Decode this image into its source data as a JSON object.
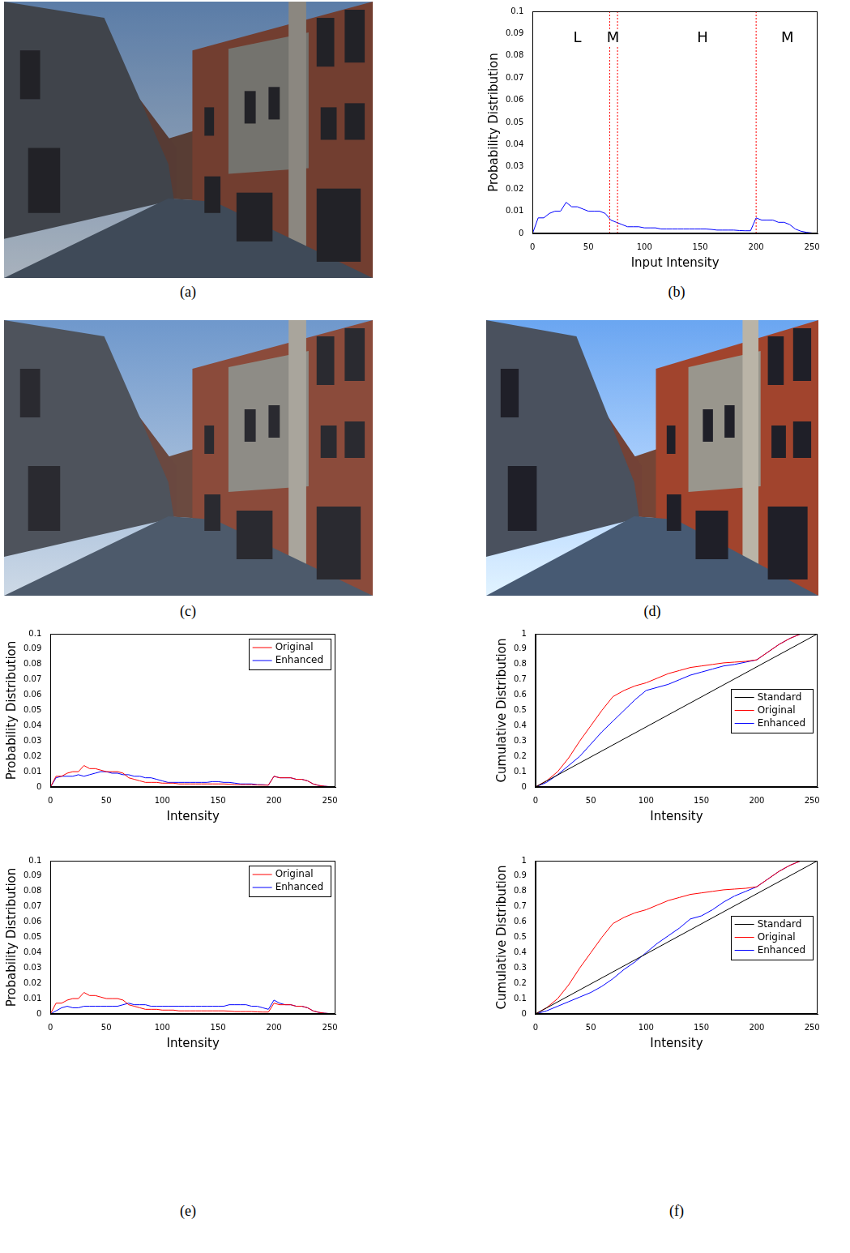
{
  "captions": [
    "(a)",
    "(b)",
    "(c)",
    "(d)",
    "(e)",
    "(f)"
  ],
  "chart_data": [
    {
      "type": "line",
      "xlabel": "Input Intensity",
      "ylabel": "Probability Distribution",
      "x": [
        0,
        5,
        10,
        15,
        20,
        25,
        30,
        35,
        40,
        45,
        50,
        55,
        60,
        65,
        70,
        75,
        80,
        85,
        90,
        95,
        100,
        105,
        110,
        115,
        120,
        125,
        130,
        135,
        140,
        145,
        150,
        155,
        160,
        165,
        170,
        175,
        180,
        185,
        190,
        195,
        200,
        205,
        210,
        215,
        220,
        225,
        230,
        235,
        240,
        245,
        250,
        255
      ],
      "values": [
        0,
        0.007,
        0.007,
        0.009,
        0.01,
        0.01,
        0.014,
        0.012,
        0.012,
        0.011,
        0.01,
        0.01,
        0.01,
        0.009,
        0.006,
        0.005,
        0.004,
        0.003,
        0.003,
        0.003,
        0.0025,
        0.0025,
        0.0025,
        0.002,
        0.002,
        0.002,
        0.002,
        0.002,
        0.002,
        0.002,
        0.002,
        0.002,
        0.0018,
        0.0015,
        0.0015,
        0.0015,
        0.0015,
        0.0013,
        0.0012,
        0.0012,
        0.007,
        0.006,
        0.006,
        0.006,
        0.005,
        0.005,
        0.004,
        0.002,
        0.001,
        0.0005,
        0.0002,
        0
      ],
      "color": "#0000ff",
      "xlim": [
        0,
        255
      ],
      "xticks": [
        0,
        50,
        100,
        150,
        200,
        250
      ],
      "ylim": [
        0,
        0.1
      ],
      "yticks": [
        0,
        0.01,
        0.02,
        0.03,
        0.04,
        0.05,
        0.06,
        0.07,
        0.08,
        0.09,
        0.1
      ],
      "grid": false,
      "vlines": [
        69,
        76,
        200
      ],
      "annotations": [
        {
          "text": "L",
          "x": 40,
          "y": 0.088
        },
        {
          "text": "M",
          "x": 72,
          "y": 0.088
        },
        {
          "text": "H",
          "x": 152,
          "y": 0.088
        },
        {
          "text": "M",
          "x": 228,
          "y": 0.088
        }
      ]
    },
    {
      "type": "line",
      "xlabel": "Intensity",
      "ylabel": "Probability Distribution",
      "x": [
        0,
        5,
        10,
        15,
        20,
        25,
        30,
        35,
        40,
        45,
        50,
        55,
        60,
        65,
        70,
        75,
        80,
        85,
        90,
        95,
        100,
        105,
        110,
        115,
        120,
        125,
        130,
        135,
        140,
        145,
        150,
        155,
        160,
        165,
        170,
        175,
        180,
        185,
        190,
        195,
        200,
        205,
        210,
        215,
        220,
        225,
        230,
        235,
        240,
        245,
        250,
        255
      ],
      "series": [
        {
          "name": "Original",
          "color": "#ff0000",
          "values": [
            0,
            0.007,
            0.007,
            0.009,
            0.01,
            0.01,
            0.014,
            0.012,
            0.012,
            0.011,
            0.01,
            0.01,
            0.01,
            0.009,
            0.006,
            0.005,
            0.004,
            0.003,
            0.003,
            0.003,
            0.0025,
            0.0025,
            0.0025,
            0.002,
            0.002,
            0.002,
            0.002,
            0.002,
            0.002,
            0.002,
            0.002,
            0.002,
            0.0018,
            0.0015,
            0.0015,
            0.0015,
            0.0015,
            0.0013,
            0.0012,
            0.0012,
            0.007,
            0.006,
            0.006,
            0.006,
            0.005,
            0.005,
            0.004,
            0.002,
            0.001,
            0.0005,
            0.0002,
            0
          ]
        },
        {
          "name": "Enhanced",
          "color": "#0000ff",
          "values": [
            0,
            0.006,
            0.007,
            0.007,
            0.007,
            0.008,
            0.007,
            0.008,
            0.009,
            0.01,
            0.01,
            0.009,
            0.009,
            0.008,
            0.008,
            0.007,
            0.007,
            0.006,
            0.006,
            0.005,
            0.004,
            0.003,
            0.003,
            0.003,
            0.003,
            0.003,
            0.003,
            0.003,
            0.003,
            0.0035,
            0.0035,
            0.003,
            0.003,
            0.0025,
            0.002,
            0.002,
            0.002,
            0.0015,
            0.0015,
            0.0012,
            0.007,
            0.006,
            0.006,
            0.006,
            0.005,
            0.005,
            0.004,
            0.002,
            0.001,
            0.0005,
            0.0002,
            0
          ]
        }
      ],
      "xlim": [
        0,
        255
      ],
      "xticks": [
        0,
        50,
        100,
        150,
        200,
        250
      ],
      "ylim": [
        0,
        0.1
      ],
      "yticks": [
        0,
        0.01,
        0.02,
        0.03,
        0.04,
        0.05,
        0.06,
        0.07,
        0.08,
        0.09,
        0.1
      ],
      "grid": false,
      "legend": "northeast"
    },
    {
      "type": "line",
      "xlabel": "Intensity",
      "ylabel": "Probability Distribution",
      "x": [
        0,
        5,
        10,
        15,
        20,
        25,
        30,
        35,
        40,
        45,
        50,
        55,
        60,
        65,
        70,
        75,
        80,
        85,
        90,
        95,
        100,
        105,
        110,
        115,
        120,
        125,
        130,
        135,
        140,
        145,
        150,
        155,
        160,
        165,
        170,
        175,
        180,
        185,
        190,
        195,
        200,
        205,
        210,
        215,
        220,
        225,
        230,
        235,
        240,
        245,
        250,
        255
      ],
      "series": [
        {
          "name": "Original",
          "color": "#ff0000",
          "values": [
            0,
            0.007,
            0.007,
            0.009,
            0.01,
            0.01,
            0.014,
            0.012,
            0.012,
            0.011,
            0.01,
            0.01,
            0.01,
            0.009,
            0.006,
            0.005,
            0.004,
            0.003,
            0.003,
            0.003,
            0.0025,
            0.0025,
            0.0025,
            0.002,
            0.002,
            0.002,
            0.002,
            0.002,
            0.002,
            0.002,
            0.002,
            0.002,
            0.0018,
            0.0015,
            0.0015,
            0.0015,
            0.0015,
            0.0013,
            0.0012,
            0.0012,
            0.007,
            0.006,
            0.006,
            0.006,
            0.005,
            0.005,
            0.004,
            0.002,
            0.001,
            0.0005,
            0.0002,
            0
          ]
        },
        {
          "name": "Enhanced",
          "color": "#0000ff",
          "values": [
            0,
            0.002,
            0.004,
            0.005,
            0.004,
            0.004,
            0.005,
            0.005,
            0.005,
            0.005,
            0.005,
            0.005,
            0.005,
            0.006,
            0.007,
            0.006,
            0.006,
            0.006,
            0.005,
            0.005,
            0.005,
            0.005,
            0.005,
            0.005,
            0.005,
            0.005,
            0.005,
            0.005,
            0.005,
            0.005,
            0.005,
            0.005,
            0.006,
            0.006,
            0.006,
            0.006,
            0.005,
            0.005,
            0.004,
            0.003,
            0.009,
            0.007,
            0.006,
            0.006,
            0.005,
            0.005,
            0.004,
            0.002,
            0.001,
            0.0005,
            0.0002,
            0
          ]
        }
      ],
      "xlim": [
        0,
        255
      ],
      "xticks": [
        0,
        50,
        100,
        150,
        200,
        250
      ],
      "ylim": [
        0,
        0.1
      ],
      "yticks": [
        0,
        0.01,
        0.02,
        0.03,
        0.04,
        0.05,
        0.06,
        0.07,
        0.08,
        0.09,
        0.1
      ],
      "grid": false,
      "legend": "northeast"
    },
    {
      "type": "line",
      "xlabel": "Intensity",
      "ylabel": "Cumulative Distribution",
      "x": [
        0,
        10,
        20,
        30,
        40,
        50,
        60,
        70,
        80,
        90,
        100,
        110,
        120,
        130,
        140,
        150,
        160,
        170,
        180,
        190,
        200,
        210,
        220,
        230,
        240,
        250,
        255
      ],
      "series": [
        {
          "name": "Standard",
          "color": "#000000",
          "x": [
            0,
            255
          ],
          "values": [
            0,
            1
          ]
        },
        {
          "name": "Original",
          "color": "#ff0000",
          "values": [
            0,
            0.04,
            0.1,
            0.19,
            0.3,
            0.4,
            0.5,
            0.59,
            0.63,
            0.66,
            0.68,
            0.71,
            0.74,
            0.76,
            0.78,
            0.79,
            0.8,
            0.81,
            0.815,
            0.82,
            0.83,
            0.88,
            0.93,
            0.97,
            1.0,
            1.0,
            1.0
          ]
        },
        {
          "name": "Enhanced",
          "color": "#0000ff",
          "values": [
            0,
            0.03,
            0.08,
            0.14,
            0.2,
            0.28,
            0.36,
            0.43,
            0.5,
            0.57,
            0.63,
            0.65,
            0.67,
            0.7,
            0.73,
            0.75,
            0.77,
            0.79,
            0.8,
            0.815,
            0.83,
            0.88,
            0.93,
            0.97,
            1.0,
            1.0,
            1.0
          ]
        }
      ],
      "xlim": [
        0,
        255
      ],
      "xticks": [
        0,
        50,
        100,
        150,
        200,
        250
      ],
      "ylim": [
        0,
        1
      ],
      "yticks": [
        0,
        0.1,
        0.2,
        0.3,
        0.4,
        0.5,
        0.6,
        0.7,
        0.8,
        0.9,
        1
      ],
      "grid": false,
      "legend": "east"
    },
    {
      "type": "line",
      "xlabel": "Intensity",
      "ylabel": "Cumulative Distribution",
      "x": [
        0,
        10,
        20,
        30,
        40,
        50,
        60,
        70,
        80,
        90,
        100,
        110,
        120,
        130,
        140,
        150,
        160,
        170,
        180,
        190,
        200,
        210,
        220,
        230,
        240,
        250,
        255
      ],
      "series": [
        {
          "name": "Standard",
          "color": "#000000",
          "x": [
            0,
            255
          ],
          "values": [
            0,
            1
          ]
        },
        {
          "name": "Original",
          "color": "#ff0000",
          "values": [
            0,
            0.04,
            0.1,
            0.19,
            0.3,
            0.4,
            0.5,
            0.59,
            0.63,
            0.66,
            0.68,
            0.71,
            0.74,
            0.76,
            0.78,
            0.79,
            0.8,
            0.81,
            0.815,
            0.82,
            0.83,
            0.88,
            0.93,
            0.97,
            1.0,
            1.0,
            1.0
          ]
        },
        {
          "name": "Enhanced",
          "color": "#0000ff",
          "values": [
            0,
            0.02,
            0.05,
            0.08,
            0.11,
            0.14,
            0.18,
            0.23,
            0.29,
            0.34,
            0.4,
            0.46,
            0.51,
            0.56,
            0.62,
            0.64,
            0.68,
            0.73,
            0.77,
            0.8,
            0.83,
            0.88,
            0.93,
            0.97,
            1.0,
            1.0,
            1.0
          ]
        }
      ],
      "xlim": [
        0,
        255
      ],
      "xticks": [
        0,
        50,
        100,
        150,
        200,
        250
      ],
      "ylim": [
        0,
        1
      ],
      "yticks": [
        0,
        0.1,
        0.2,
        0.3,
        0.4,
        0.5,
        0.6,
        0.7,
        0.8,
        0.9,
        1
      ],
      "grid": false,
      "legend": "east"
    }
  ]
}
